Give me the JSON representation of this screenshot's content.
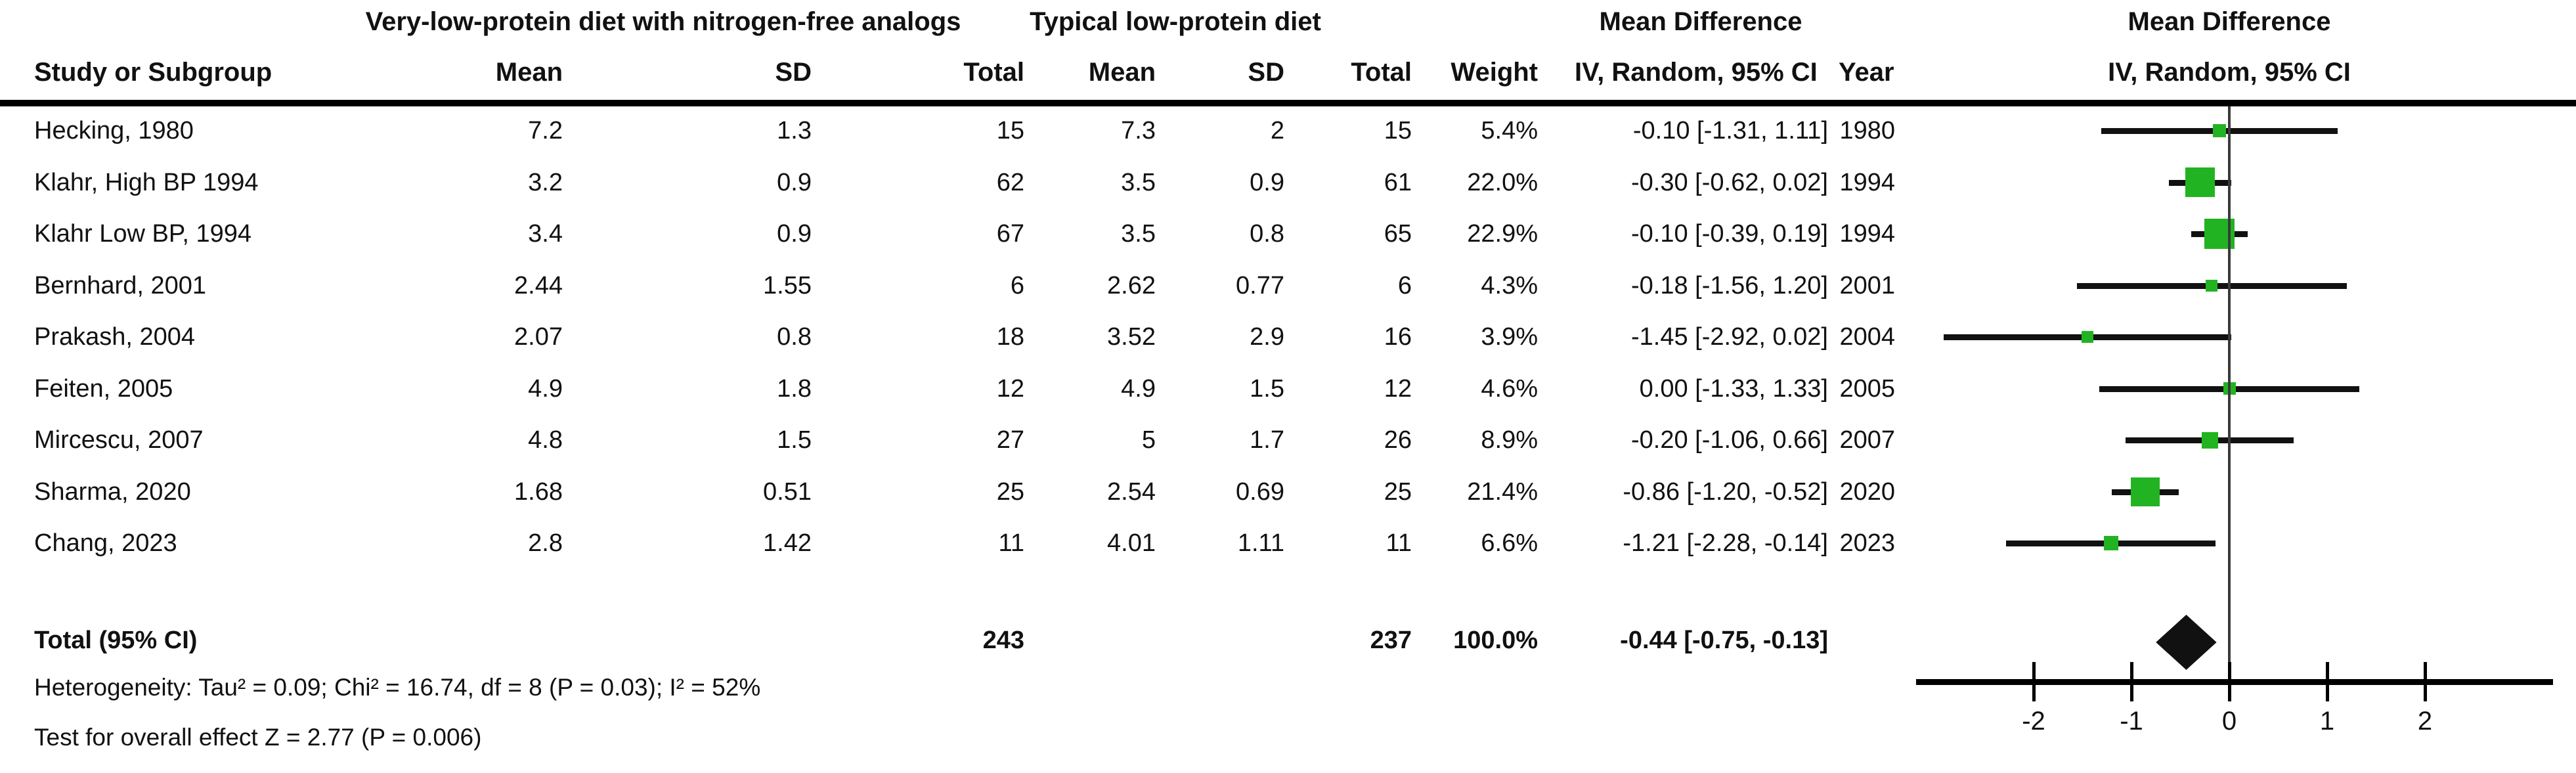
{
  "header": {
    "group1": "Very-low-protein diet with nitrogen-free analogs",
    "group2": "Typical low-protein diet",
    "md_left_title": "Mean Difference",
    "md_left_sub": "IV, Random, 95% CI",
    "md_right_title": "Mean Difference",
    "md_right_sub": "IV, Random, 95% CI",
    "study_col": "Study or Subgroup",
    "mean_col_1": "Mean",
    "sd_col_1": "SD",
    "total_col_1": "Total",
    "mean_col_2": "Mean",
    "sd_col_2": "SD",
    "total_col_2": "Total",
    "weight_col": "Weight",
    "year_col": "Year"
  },
  "chart_data": {
    "type": "scatter",
    "subtype": "forest",
    "title": "Mean Difference",
    "effect_model": "IV, Random, 95% CI",
    "axis": {
      "ticks": [
        -2,
        -1,
        0,
        1,
        2
      ],
      "min": -3.2,
      "max": 3.3,
      "zero_reference_line": true
    },
    "studies": [
      {
        "name": "Hecking, 1980",
        "exp_mean": "7.2",
        "exp_sd": "1.3",
        "exp_total": "15",
        "ctrl_mean": "7.3",
        "ctrl_sd": "2",
        "ctrl_total": "15",
        "weight": "5.4%",
        "ci_text": "-0.10 [-1.31, 1.11]",
        "year": "1980",
        "est": -0.1,
        "lo": -1.31,
        "hi": 1.11,
        "weight_pct": 5.4
      },
      {
        "name": "Klahr, High BP 1994",
        "exp_mean": "3.2",
        "exp_sd": "0.9",
        "exp_total": "62",
        "ctrl_mean": "3.5",
        "ctrl_sd": "0.9",
        "ctrl_total": "61",
        "weight": "22.0%",
        "ci_text": "-0.30 [-0.62, 0.02]",
        "year": "1994",
        "est": -0.3,
        "lo": -0.62,
        "hi": 0.02,
        "weight_pct": 22.0
      },
      {
        "name": "Klahr Low BP, 1994",
        "exp_mean": "3.4",
        "exp_sd": "0.9",
        "exp_total": "67",
        "ctrl_mean": "3.5",
        "ctrl_sd": "0.8",
        "ctrl_total": "65",
        "weight": "22.9%",
        "ci_text": "-0.10 [-0.39, 0.19]",
        "year": "1994",
        "est": -0.1,
        "lo": -0.39,
        "hi": 0.19,
        "weight_pct": 22.9
      },
      {
        "name": "Bernhard, 2001",
        "exp_mean": "2.44",
        "exp_sd": "1.55",
        "exp_total": "6",
        "ctrl_mean": "2.62",
        "ctrl_sd": "0.77",
        "ctrl_total": "6",
        "weight": "4.3%",
        "ci_text": "-0.18 [-1.56, 1.20]",
        "year": "2001",
        "est": -0.18,
        "lo": -1.56,
        "hi": 1.2,
        "weight_pct": 4.3
      },
      {
        "name": "Prakash, 2004",
        "exp_mean": "2.07",
        "exp_sd": "0.8",
        "exp_total": "18",
        "ctrl_mean": "3.52",
        "ctrl_sd": "2.9",
        "ctrl_total": "16",
        "weight": "3.9%",
        "ci_text": "-1.45 [-2.92, 0.02]",
        "year": "2004",
        "est": -1.45,
        "lo": -2.92,
        "hi": 0.02,
        "weight_pct": 3.9
      },
      {
        "name": "Feiten, 2005",
        "exp_mean": "4.9",
        "exp_sd": "1.8",
        "exp_total": "12",
        "ctrl_mean": "4.9",
        "ctrl_sd": "1.5",
        "ctrl_total": "12",
        "weight": "4.6%",
        "ci_text": "0.00 [-1.33, 1.33]",
        "year": "2005",
        "est": 0.0,
        "lo": -1.33,
        "hi": 1.33,
        "weight_pct": 4.6
      },
      {
        "name": "Mircescu, 2007",
        "exp_mean": "4.8",
        "exp_sd": "1.5",
        "exp_total": "27",
        "ctrl_mean": "5",
        "ctrl_sd": "1.7",
        "ctrl_total": "26",
        "weight": "8.9%",
        "ci_text": "-0.20 [-1.06, 0.66]",
        "year": "2007",
        "est": -0.2,
        "lo": -1.06,
        "hi": 0.66,
        "weight_pct": 8.9
      },
      {
        "name": "Sharma, 2020",
        "exp_mean": "1.68",
        "exp_sd": "0.51",
        "exp_total": "25",
        "ctrl_mean": "2.54",
        "ctrl_sd": "0.69",
        "ctrl_total": "25",
        "weight": "21.4%",
        "ci_text": "-0.86 [-1.20, -0.52]",
        "year": "2020",
        "est": -0.86,
        "lo": -1.2,
        "hi": -0.52,
        "weight_pct": 21.4
      },
      {
        "name": "Chang, 2023",
        "exp_mean": "2.8",
        "exp_sd": "1.42",
        "exp_total": "11",
        "ctrl_mean": "4.01",
        "ctrl_sd": "1.11",
        "ctrl_total": "11",
        "weight": "6.6%",
        "ci_text": "-1.21 [-2.28, -0.14]",
        "year": "2023",
        "est": -1.21,
        "lo": -2.28,
        "hi": -0.14,
        "weight_pct": 6.6
      }
    ],
    "total": {
      "label": "Total (95% CI)",
      "exp_total": "243",
      "ctrl_total": "237",
      "weight": "100.0%",
      "ci_text": "-0.44 [-0.75, -0.13]",
      "est": -0.44,
      "lo": -0.75,
      "hi": -0.13
    },
    "heterogeneity": "Heterogeneity: Tau² = 0.09; Chi² = 16.74, df = 8 (P = 0.03); I² = 52%",
    "overall_effect": "Test for overall effect Z = 2.77 (P = 0.006)"
  },
  "colors": {
    "marker_green": "#22B322",
    "ci_line": "#111111",
    "diamond": "#111111",
    "zero_line": "#3a3a3a"
  }
}
